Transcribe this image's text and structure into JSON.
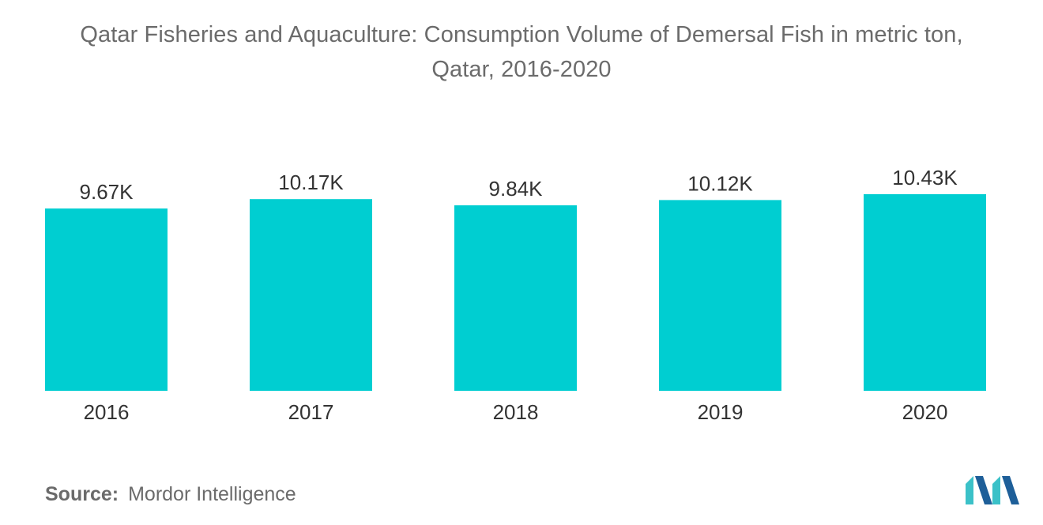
{
  "title_line1": "Qatar Fisheries and Aquaculture: Consumption Volume of Demersal Fish in metric ton,",
  "title_line2": "Qatar, 2016-2020",
  "source_label": "Source:",
  "source_value": "Mordor Intelligence",
  "colors": {
    "bar": "#00CED1",
    "logo_dark": "#1E5F99",
    "logo_light": "#3BC1C8"
  },
  "chart_data": {
    "type": "bar",
    "categories": [
      "2016",
      "2017",
      "2018",
      "2019",
      "2020"
    ],
    "values": [
      9.67,
      10.17,
      9.84,
      10.12,
      10.43
    ],
    "value_labels": [
      "9.67K",
      "10.17K",
      "9.84K",
      "10.12K",
      "10.43K"
    ],
    "ylim": [
      0,
      11.1
    ],
    "grid": false,
    "legend": "none"
  }
}
